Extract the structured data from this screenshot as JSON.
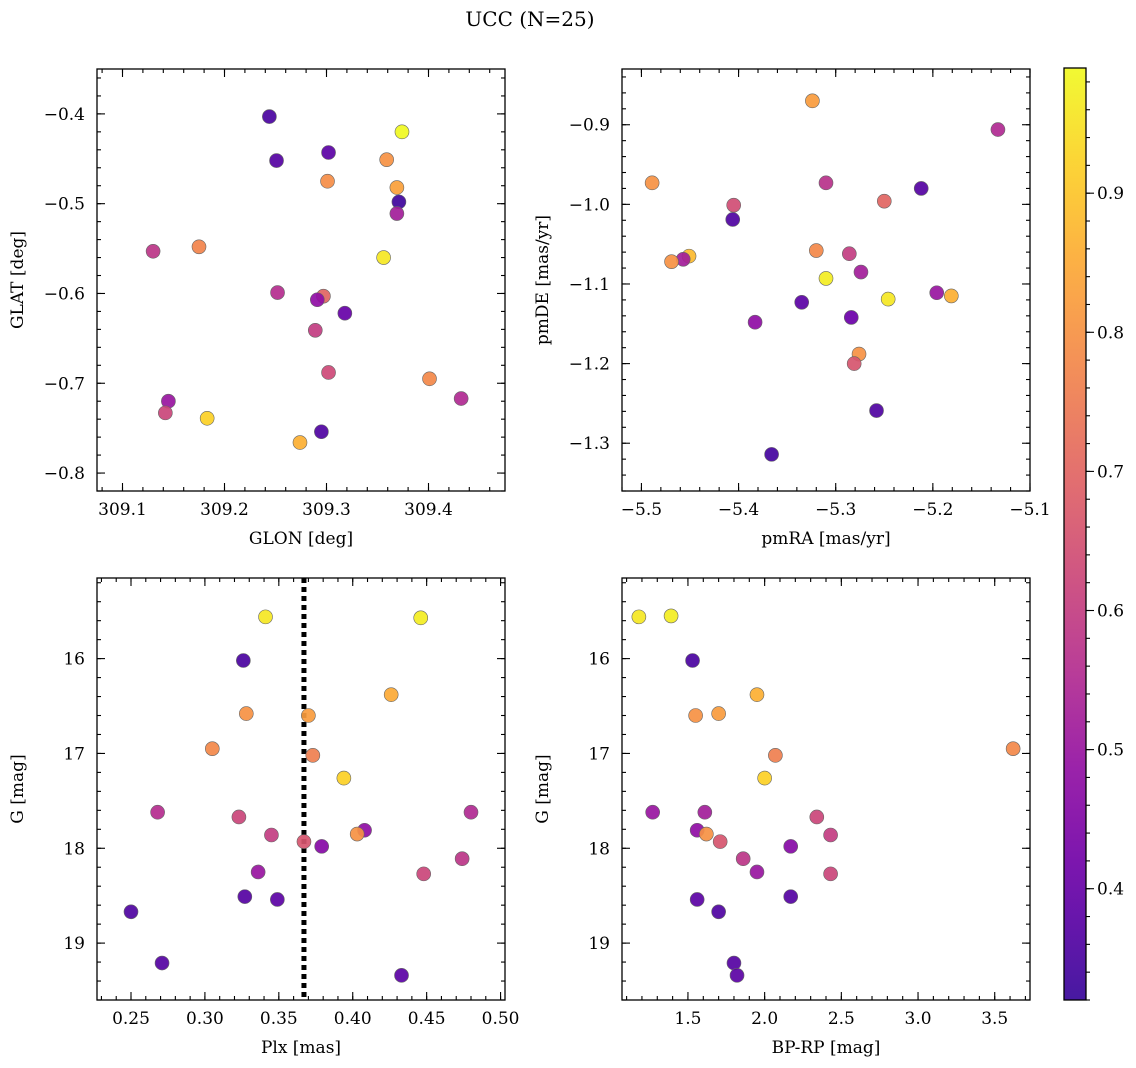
{
  "figure": {
    "title": "UCC (N=25)",
    "colormap": "plasma",
    "colorbar": {
      "min": 0.32,
      "max": 0.99,
      "ticks": [
        0.4,
        0.5,
        0.6,
        0.7,
        0.8,
        0.9
      ],
      "tick_labels": [
        "0.4",
        "0.5",
        "0.6",
        "0.7",
        "0.8",
        "0.9"
      ]
    }
  },
  "chart_data": [
    {
      "type": "scatter",
      "xlabel": "GLON [deg]",
      "ylabel": "GLAT [deg]",
      "xlim": [
        309.075,
        309.475
      ],
      "ylim": [
        -0.82,
        -0.35
      ],
      "xticks": [
        309.1,
        309.2,
        309.3,
        309.4
      ],
      "xtick_labels": [
        "309.1",
        "309.2",
        "309.3",
        "309.4"
      ],
      "yticks": [
        -0.8,
        -0.7,
        -0.6,
        -0.5,
        -0.4
      ],
      "ytick_labels": [
        "−0.8",
        "−0.7",
        "−0.6",
        "−0.5",
        "−0.4"
      ],
      "y_inverted": false,
      "points": [
        {
          "x": 309.244,
          "y": -0.403,
          "c": 0.35
        },
        {
          "x": 309.374,
          "y": -0.42,
          "c": 0.99
        },
        {
          "x": 309.302,
          "y": -0.443,
          "c": 0.38
        },
        {
          "x": 309.251,
          "y": -0.452,
          "c": 0.37
        },
        {
          "x": 309.359,
          "y": -0.451,
          "c": 0.8
        },
        {
          "x": 309.301,
          "y": -0.475,
          "c": 0.79
        },
        {
          "x": 309.369,
          "y": -0.482,
          "c": 0.83
        },
        {
          "x": 309.371,
          "y": -0.498,
          "c": 0.33
        },
        {
          "x": 309.369,
          "y": -0.511,
          "c": 0.52
        },
        {
          "x": 309.13,
          "y": -0.553,
          "c": 0.58
        },
        {
          "x": 309.175,
          "y": -0.548,
          "c": 0.77
        },
        {
          "x": 309.356,
          "y": -0.56,
          "c": 0.96
        },
        {
          "x": 309.252,
          "y": -0.599,
          "c": 0.56
        },
        {
          "x": 309.297,
          "y": -0.603,
          "c": 0.7
        },
        {
          "x": 309.291,
          "y": -0.607,
          "c": 0.48
        },
        {
          "x": 309.318,
          "y": -0.622,
          "c": 0.4
        },
        {
          "x": 309.289,
          "y": -0.641,
          "c": 0.6
        },
        {
          "x": 309.302,
          "y": -0.688,
          "c": 0.63
        },
        {
          "x": 309.401,
          "y": -0.695,
          "c": 0.78
        },
        {
          "x": 309.145,
          "y": -0.72,
          "c": 0.5
        },
        {
          "x": 309.432,
          "y": -0.717,
          "c": 0.55
        },
        {
          "x": 309.142,
          "y": -0.733,
          "c": 0.62
        },
        {
          "x": 309.183,
          "y": -0.739,
          "c": 0.92
        },
        {
          "x": 309.274,
          "y": -0.766,
          "c": 0.86
        },
        {
          "x": 309.295,
          "y": -0.754,
          "c": 0.36
        }
      ]
    },
    {
      "type": "scatter",
      "xlabel": "pmRA [mas/yr]",
      "ylabel": "pmDE [mas/yr]",
      "xlim": [
        -5.52,
        -5.1
      ],
      "ylim": [
        -1.36,
        -0.83
      ],
      "xticks": [
        -5.5,
        -5.4,
        -5.3,
        -5.2,
        -5.1
      ],
      "xtick_labels": [
        "−5.5",
        "−5.4",
        "−5.3",
        "−5.2",
        "−5.1"
      ],
      "yticks": [
        -1.3,
        -1.2,
        -1.1,
        -1.0,
        -0.9
      ],
      "ytick_labels": [
        "−1.3",
        "−1.2",
        "−1.1",
        "−1.0",
        "−0.9"
      ],
      "y_inverted": false,
      "points": [
        {
          "x": -5.324,
          "y": -0.87,
          "c": 0.82
        },
        {
          "x": -5.133,
          "y": -0.906,
          "c": 0.55
        },
        {
          "x": -5.489,
          "y": -0.973,
          "c": 0.8
        },
        {
          "x": -5.31,
          "y": -0.973,
          "c": 0.57
        },
        {
          "x": -5.212,
          "y": -0.98,
          "c": 0.37
        },
        {
          "x": -5.25,
          "y": -0.996,
          "c": 0.7
        },
        {
          "x": -5.405,
          "y": -1.001,
          "c": 0.64
        },
        {
          "x": -5.406,
          "y": -1.019,
          "c": 0.36
        },
        {
          "x": -5.32,
          "y": -1.058,
          "c": 0.78
        },
        {
          "x": -5.286,
          "y": -1.062,
          "c": 0.6
        },
        {
          "x": -5.451,
          "y": -1.065,
          "c": 0.88
        },
        {
          "x": -5.457,
          "y": -1.069,
          "c": 0.52
        },
        {
          "x": -5.469,
          "y": -1.072,
          "c": 0.8
        },
        {
          "x": -5.274,
          "y": -1.085,
          "c": 0.52
        },
        {
          "x": -5.31,
          "y": -1.093,
          "c": 0.97
        },
        {
          "x": -5.196,
          "y": -1.111,
          "c": 0.5
        },
        {
          "x": -5.246,
          "y": -1.119,
          "c": 0.96
        },
        {
          "x": -5.181,
          "y": -1.115,
          "c": 0.86
        },
        {
          "x": -5.335,
          "y": -1.123,
          "c": 0.38
        },
        {
          "x": -5.284,
          "y": -1.142,
          "c": 0.41
        },
        {
          "x": -5.383,
          "y": -1.148,
          "c": 0.48
        },
        {
          "x": -5.276,
          "y": -1.188,
          "c": 0.8
        },
        {
          "x": -5.281,
          "y": -1.2,
          "c": 0.66
        },
        {
          "x": -5.258,
          "y": -1.259,
          "c": 0.36
        },
        {
          "x": -5.366,
          "y": -1.314,
          "c": 0.34
        }
      ]
    },
    {
      "type": "scatter",
      "xlabel": "Plx [mas]",
      "ylabel": "G [mag]",
      "xlim": [
        0.227,
        0.503
      ],
      "ylim": [
        19.6,
        15.15
      ],
      "xticks": [
        0.25,
        0.3,
        0.35,
        0.4,
        0.45,
        0.5
      ],
      "xtick_labels": [
        "0.25",
        "0.30",
        "0.35",
        "0.40",
        "0.45",
        "0.50"
      ],
      "yticks": [
        16,
        17,
        18,
        19
      ],
      "ytick_labels": [
        "16",
        "17",
        "18",
        "19"
      ],
      "y_inverted": true,
      "vline": {
        "x": 0.367,
        "style": "dotted",
        "color": "#000000"
      },
      "points": [
        {
          "x": 0.341,
          "y": 15.56,
          "c": 0.96
        },
        {
          "x": 0.446,
          "y": 15.57,
          "c": 0.97
        },
        {
          "x": 0.326,
          "y": 16.02,
          "c": 0.35
        },
        {
          "x": 0.426,
          "y": 16.38,
          "c": 0.85
        },
        {
          "x": 0.328,
          "y": 16.58,
          "c": 0.8
        },
        {
          "x": 0.37,
          "y": 16.6,
          "c": 0.82
        },
        {
          "x": 0.305,
          "y": 16.95,
          "c": 0.78
        },
        {
          "x": 0.373,
          "y": 17.02,
          "c": 0.76
        },
        {
          "x": 0.394,
          "y": 17.26,
          "c": 0.92
        },
        {
          "x": 0.268,
          "y": 17.62,
          "c": 0.56
        },
        {
          "x": 0.48,
          "y": 17.62,
          "c": 0.55
        },
        {
          "x": 0.323,
          "y": 17.67,
          "c": 0.62
        },
        {
          "x": 0.408,
          "y": 17.81,
          "c": 0.48
        },
        {
          "x": 0.345,
          "y": 17.86,
          "c": 0.6
        },
        {
          "x": 0.403,
          "y": 17.85,
          "c": 0.8
        },
        {
          "x": 0.367,
          "y": 17.93,
          "c": 0.66
        },
        {
          "x": 0.379,
          "y": 17.98,
          "c": 0.46
        },
        {
          "x": 0.474,
          "y": 18.11,
          "c": 0.58
        },
        {
          "x": 0.336,
          "y": 18.25,
          "c": 0.5
        },
        {
          "x": 0.448,
          "y": 18.27,
          "c": 0.62
        },
        {
          "x": 0.327,
          "y": 18.51,
          "c": 0.37
        },
        {
          "x": 0.349,
          "y": 18.54,
          "c": 0.38
        },
        {
          "x": 0.25,
          "y": 18.67,
          "c": 0.36
        },
        {
          "x": 0.271,
          "y": 19.21,
          "c": 0.37
        },
        {
          "x": 0.433,
          "y": 19.34,
          "c": 0.38
        }
      ]
    },
    {
      "type": "scatter",
      "xlabel": "BP-RP [mag]",
      "ylabel": "G [mag]",
      "xlim": [
        1.07,
        3.73
      ],
      "ylim": [
        19.6,
        15.15
      ],
      "xticks": [
        1.5,
        2.0,
        2.5,
        3.0,
        3.5
      ],
      "xtick_labels": [
        "1.5",
        "2.0",
        "2.5",
        "3.0",
        "3.5"
      ],
      "yticks": [
        16,
        17,
        18,
        19
      ],
      "ytick_labels": [
        "16",
        "17",
        "18",
        "19"
      ],
      "y_inverted": true,
      "points": [
        {
          "x": 1.18,
          "y": 15.56,
          "c": 0.96
        },
        {
          "x": 1.39,
          "y": 15.55,
          "c": 0.97
        },
        {
          "x": 1.53,
          "y": 16.02,
          "c": 0.35
        },
        {
          "x": 1.95,
          "y": 16.38,
          "c": 0.86
        },
        {
          "x": 1.55,
          "y": 16.6,
          "c": 0.8
        },
        {
          "x": 1.7,
          "y": 16.58,
          "c": 0.82
        },
        {
          "x": 3.62,
          "y": 16.95,
          "c": 0.78
        },
        {
          "x": 2.07,
          "y": 17.02,
          "c": 0.76
        },
        {
          "x": 2.0,
          "y": 17.26,
          "c": 0.92
        },
        {
          "x": 1.27,
          "y": 17.62,
          "c": 0.5
        },
        {
          "x": 1.61,
          "y": 17.62,
          "c": 0.52
        },
        {
          "x": 2.34,
          "y": 17.67,
          "c": 0.62
        },
        {
          "x": 1.56,
          "y": 17.81,
          "c": 0.48
        },
        {
          "x": 1.62,
          "y": 17.85,
          "c": 0.8
        },
        {
          "x": 2.43,
          "y": 17.86,
          "c": 0.6
        },
        {
          "x": 1.71,
          "y": 17.93,
          "c": 0.66
        },
        {
          "x": 2.17,
          "y": 17.98,
          "c": 0.46
        },
        {
          "x": 1.86,
          "y": 18.11,
          "c": 0.58
        },
        {
          "x": 1.95,
          "y": 18.25,
          "c": 0.5
        },
        {
          "x": 2.43,
          "y": 18.27,
          "c": 0.62
        },
        {
          "x": 2.17,
          "y": 18.51,
          "c": 0.37
        },
        {
          "x": 1.56,
          "y": 18.54,
          "c": 0.38
        },
        {
          "x": 1.7,
          "y": 18.67,
          "c": 0.36
        },
        {
          "x": 1.8,
          "y": 19.21,
          "c": 0.37
        },
        {
          "x": 1.82,
          "y": 19.34,
          "c": 0.38
        }
      ]
    }
  ]
}
